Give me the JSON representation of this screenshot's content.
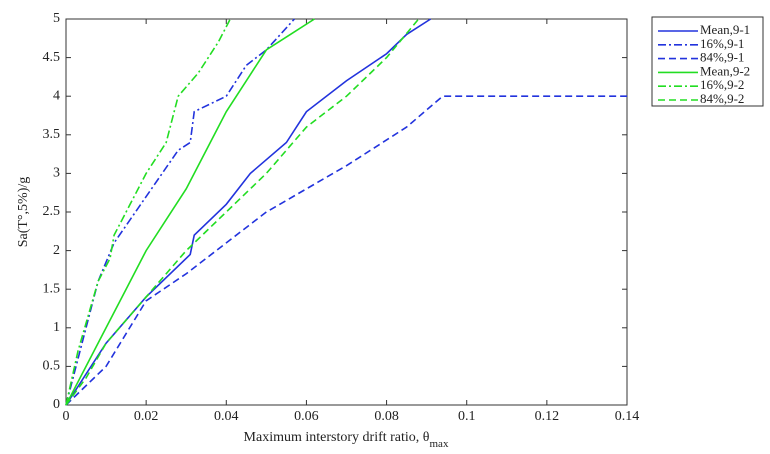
{
  "chart_data": {
    "type": "line",
    "xlabel": "Maximum interstory drift ratio, θ",
    "xlabel_sub": "max",
    "ylabel": "Sa(T°,5%)/g",
    "xlim": [
      0,
      0.14
    ],
    "xticks": [
      0,
      0.02,
      0.04,
      0.06,
      0.08,
      0.1,
      0.12,
      0.14
    ],
    "ylim": [
      0,
      5
    ],
    "yticks": [
      0,
      0.5,
      1,
      1.5,
      2,
      2.5,
      3,
      3.5,
      4,
      4.5,
      5
    ],
    "legend": "outside-right",
    "series": [
      {
        "name": "Mean,9-1",
        "color": "#2233dd",
        "dash": "solid",
        "x": [
          0,
          0.005,
          0.01,
          0.02,
          0.031,
          0.032,
          0.04,
          0.046,
          0.055,
          0.06,
          0.07,
          0.08,
          0.085,
          0.091
        ],
        "values": [
          0,
          0.4,
          0.8,
          1.4,
          1.95,
          2.2,
          2.6,
          3.0,
          3.4,
          3.8,
          4.2,
          4.55,
          4.8,
          5.0
        ]
      },
      {
        "name": "16%,9-1",
        "color": "#2233dd",
        "dash": "dashdot",
        "x": [
          0,
          0.003,
          0.008,
          0.012,
          0.02,
          0.028,
          0.031,
          0.032,
          0.04,
          0.045,
          0.05,
          0.057
        ],
        "values": [
          0,
          0.6,
          1.6,
          2.1,
          2.7,
          3.3,
          3.4,
          3.8,
          4.0,
          4.4,
          4.6,
          5.0
        ]
      },
      {
        "name": "84%,9-1",
        "color": "#2233dd",
        "dash": "dashed",
        "x": [
          0,
          0.01,
          0.02,
          0.03,
          0.05,
          0.07,
          0.085,
          0.094,
          0.14
        ],
        "values": [
          0,
          0.5,
          1.35,
          1.7,
          2.5,
          3.1,
          3.6,
          4.0,
          4.0
        ]
      },
      {
        "name": "Mean,9-2",
        "color": "#22dd22",
        "dash": "solid",
        "x": [
          0,
          0.005,
          0.01,
          0.015,
          0.02,
          0.025,
          0.03,
          0.035,
          0.04,
          0.045,
          0.05,
          0.056,
          0.062
        ],
        "values": [
          0,
          0.5,
          1.0,
          1.5,
          2.0,
          2.4,
          2.8,
          3.3,
          3.8,
          4.2,
          4.6,
          4.8,
          5.0
        ]
      },
      {
        "name": "16%,9-2",
        "color": "#22dd22",
        "dash": "dashdot",
        "x": [
          0,
          0.003,
          0.008,
          0.011,
          0.012,
          0.016,
          0.02,
          0.025,
          0.028,
          0.033,
          0.038,
          0.041
        ],
        "values": [
          0,
          0.7,
          1.6,
          1.9,
          2.2,
          2.6,
          3.0,
          3.4,
          4.0,
          4.3,
          4.7,
          5.0
        ]
      },
      {
        "name": "84%,9-2",
        "color": "#22dd22",
        "dash": "dashed",
        "x": [
          0,
          0.005,
          0.01,
          0.02,
          0.03,
          0.04,
          0.05,
          0.06,
          0.07,
          0.08,
          0.088
        ],
        "values": [
          0,
          0.35,
          0.8,
          1.4,
          2.0,
          2.5,
          3.0,
          3.6,
          4.0,
          4.5,
          5.0
        ]
      }
    ]
  }
}
